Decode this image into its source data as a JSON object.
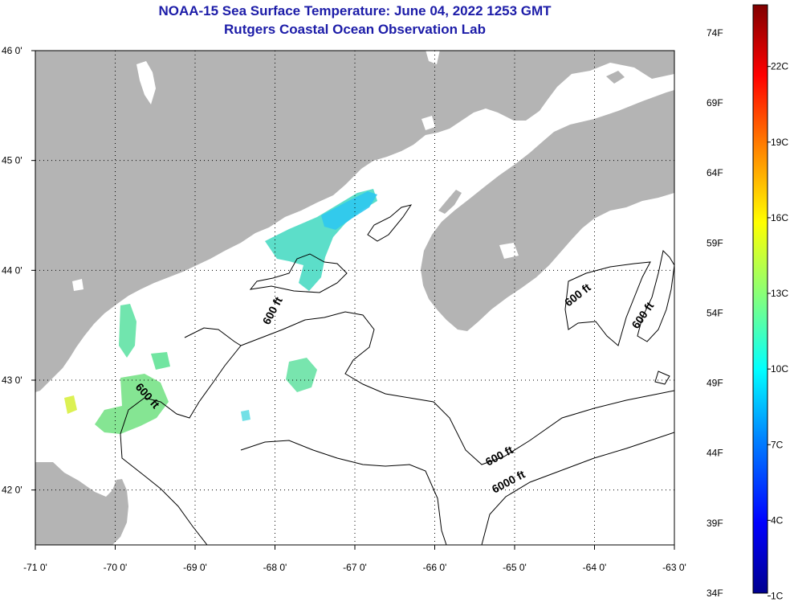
{
  "header": {
    "title": "NOAA-15 Sea Surface Temperature:  June 04, 2022 1253 GMT",
    "subtitle": "Rutgers Coastal Ocean Observation Lab"
  },
  "map": {
    "lon_range": [
      -71.0,
      -63.0
    ],
    "lat_range": [
      41.5,
      46.0
    ],
    "lon_ticks": [
      {
        "value": -71,
        "label": "-71 0'"
      },
      {
        "value": -70,
        "label": "-70 0'"
      },
      {
        "value": -69,
        "label": "-69 0'"
      },
      {
        "value": -68,
        "label": "-68 0'"
      },
      {
        "value": -67,
        "label": "-67 0'"
      },
      {
        "value": -66,
        "label": "-66 0'"
      },
      {
        "value": -65,
        "label": "-65 0'"
      },
      {
        "value": -64,
        "label": "-64 0'"
      },
      {
        "value": -63,
        "label": "-63 0'"
      }
    ],
    "lat_ticks": [
      {
        "value": 46,
        "label": "46 0'"
      },
      {
        "value": 45,
        "label": "45 0'"
      },
      {
        "value": 44,
        "label": "44 0'"
      },
      {
        "value": 43,
        "label": "43 0'"
      },
      {
        "value": 42,
        "label": "42 0'"
      }
    ],
    "gridlines": true,
    "colors": {
      "land": "#b4b4b4",
      "ocean": "#ffffff",
      "contour": "#000000"
    },
    "contour_labels": [
      {
        "text": "600 ft"
      },
      {
        "text": "600 ft"
      },
      {
        "text": "600 ft"
      },
      {
        "text": "600 ft"
      },
      {
        "text": "600 ft"
      },
      {
        "text": "6000 ft"
      }
    ]
  },
  "colorbar": {
    "range_f": [
      34,
      76
    ],
    "fahrenheit_labels": [
      "74F",
      "69F",
      "64F",
      "59F",
      "54F",
      "49F",
      "44F",
      "39F",
      "34F"
    ],
    "celsius_labels": [
      "22C",
      "19C",
      "16C",
      "13C",
      "10C",
      "7C",
      "4C",
      "1C"
    ],
    "colors": [
      "#00008f",
      "#0000ff",
      "#0080ff",
      "#00ffff",
      "#80ff80",
      "#ffff00",
      "#ff8000",
      "#ff0000",
      "#800000"
    ]
  }
}
